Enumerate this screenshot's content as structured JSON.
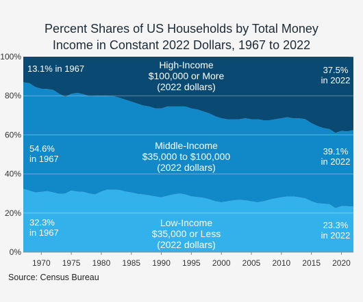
{
  "title_line1": "Percent Shares of US Households by Total Money",
  "title_line2": "Income in Constant 2022 Dollars, 1967 to 2022",
  "source": "Source: Census Bureau",
  "colors": {
    "low": "#33b1ea",
    "middle": "#1189c9",
    "high": "#0a4a72",
    "background": "#f5f5f5"
  },
  "annotations": {
    "high_label": "High-Income",
    "high_range": "$100,000 or More",
    "high_dollars": "(2022 dollars)",
    "high_1967": "13.1% in 1967",
    "high_2022_pct": "37.5%",
    "high_2022_year": "in 2022",
    "mid_label": "Middle-Income",
    "mid_range": "$35,000 to $100,000",
    "mid_dollars": "(2022 dollars)",
    "mid_1967_pct": "54.6%",
    "mid_1967_year": "in 1967",
    "mid_2022_pct": "39.1%",
    "mid_2022_year": "in 2022",
    "low_label": "Low-Income",
    "low_range": "$35,000 or Less",
    "low_dollars": "(2022 dollars)",
    "low_1967_pct": "32.3%",
    "low_1967_year": "in 1967",
    "low_2022_pct": "23.3%",
    "low_2022_year": "in 2022"
  },
  "chart_data": {
    "type": "area",
    "stacked": true,
    "title": "Percent Shares of US Households by Total Money Income in Constant 2022 Dollars, 1967 to 2022",
    "xlim": [
      1967,
      2022
    ],
    "ylim": [
      0,
      100
    ],
    "x_ticks": [
      1970,
      1975,
      1980,
      1985,
      1990,
      1995,
      2000,
      2005,
      2010,
      2015,
      2020
    ],
    "y_ticks": [
      0,
      20,
      40,
      60,
      80,
      100
    ],
    "y_tick_labels": [
      "0%",
      "20%",
      "40%",
      "60%",
      "80%",
      "100%"
    ],
    "grid": true,
    "x": [
      1967,
      1968,
      1969,
      1970,
      1971,
      1972,
      1973,
      1974,
      1975,
      1976,
      1977,
      1978,
      1979,
      1980,
      1981,
      1982,
      1983,
      1984,
      1985,
      1986,
      1987,
      1988,
      1989,
      1990,
      1991,
      1992,
      1993,
      1994,
      1995,
      1996,
      1997,
      1998,
      1999,
      2000,
      2001,
      2002,
      2003,
      2004,
      2005,
      2006,
      2007,
      2008,
      2009,
      2010,
      2011,
      2012,
      2013,
      2014,
      2015,
      2016,
      2017,
      2018,
      2019,
      2020,
      2021,
      2022
    ],
    "series": [
      {
        "name": "Low-Income",
        "values": [
          32.3,
          31.5,
          30.5,
          30.8,
          31.2,
          30.5,
          29.8,
          30.0,
          31.5,
          31.0,
          30.8,
          30.0,
          29.5,
          31.0,
          32.0,
          32.0,
          31.8,
          31.0,
          30.5,
          29.8,
          29.5,
          29.0,
          28.5,
          28.0,
          28.8,
          29.5,
          30.0,
          29.5,
          28.5,
          28.2,
          27.8,
          27.0,
          26.0,
          25.5,
          26.0,
          26.5,
          26.8,
          26.5,
          26.0,
          25.5,
          26.0,
          26.8,
          27.5,
          28.0,
          28.5,
          28.5,
          28.0,
          27.5,
          26.0,
          25.0,
          24.8,
          24.5,
          22.5,
          23.5,
          23.5,
          23.3
        ]
      },
      {
        "name": "Middle-Income",
        "values": [
          54.6,
          55.0,
          54.0,
          52.8,
          52.3,
          52.5,
          51.2,
          49.5,
          49.5,
          50.5,
          50.0,
          49.8,
          50.5,
          49.0,
          48.0,
          47.8,
          47.2,
          47.0,
          46.5,
          46.2,
          45.5,
          45.5,
          45.0,
          45.5,
          45.7,
          45.0,
          44.5,
          45.0,
          45.0,
          44.8,
          44.2,
          44.0,
          43.5,
          43.0,
          42.0,
          41.5,
          41.2,
          42.0,
          42.0,
          42.5,
          41.5,
          40.7,
          40.5,
          40.5,
          40.5,
          40.0,
          40.5,
          40.5,
          40.0,
          39.5,
          38.7,
          38.5,
          38.5,
          38.5,
          38.3,
          39.1
        ]
      },
      {
        "name": "High-Income",
        "values": [
          13.1,
          13.5,
          15.5,
          16.4,
          16.5,
          17.0,
          19.0,
          20.5,
          19.0,
          18.5,
          19.2,
          20.2,
          20.0,
          20.0,
          20.0,
          20.2,
          21.0,
          22.0,
          23.0,
          24.0,
          25.0,
          25.5,
          26.5,
          26.5,
          25.5,
          25.5,
          25.5,
          25.5,
          26.5,
          27.0,
          28.0,
          29.0,
          30.5,
          31.5,
          32.0,
          32.0,
          32.0,
          31.5,
          32.0,
          32.0,
          32.5,
          32.5,
          32.0,
          31.5,
          31.0,
          31.5,
          31.5,
          32.0,
          34.0,
          35.5,
          36.5,
          37.0,
          39.0,
          38.0,
          38.2,
          37.5
        ]
      }
    ]
  }
}
